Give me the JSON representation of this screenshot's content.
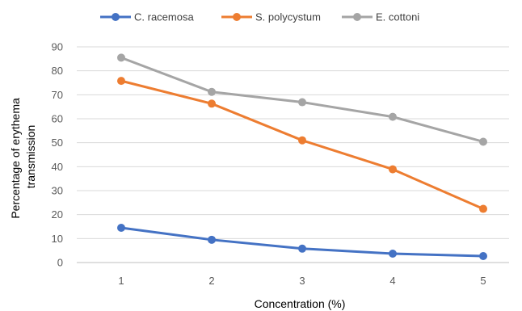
{
  "chart_data": {
    "type": "line",
    "title": "",
    "xlabel": "Concentration (%)",
    "ylabel_lines": [
      "Percentage of erythema",
      "transmission"
    ],
    "x": [
      1,
      2,
      3,
      4,
      5
    ],
    "x_tick_labels": [
      "1",
      "2",
      "3",
      "4",
      "5"
    ],
    "ylim": [
      0,
      90
    ],
    "y_tick_labels": [
      "0",
      "10",
      "20",
      "30",
      "40",
      "50",
      "60",
      "70",
      "80",
      "90"
    ],
    "grid": true,
    "legend_position": "top",
    "series": [
      {
        "name": "C. racemosa",
        "color": "#4472C4",
        "values": [
          14.5,
          9.5,
          5.8,
          3.7,
          2.7
        ]
      },
      {
        "name": "S. polycystum",
        "color": "#ED7D31",
        "values": [
          75.8,
          66.3,
          51.0,
          38.9,
          22.4
        ]
      },
      {
        "name": "E. cottoni",
        "color": "#A5A5A5",
        "values": [
          85.5,
          71.2,
          66.9,
          60.8,
          50.4
        ]
      }
    ]
  }
}
